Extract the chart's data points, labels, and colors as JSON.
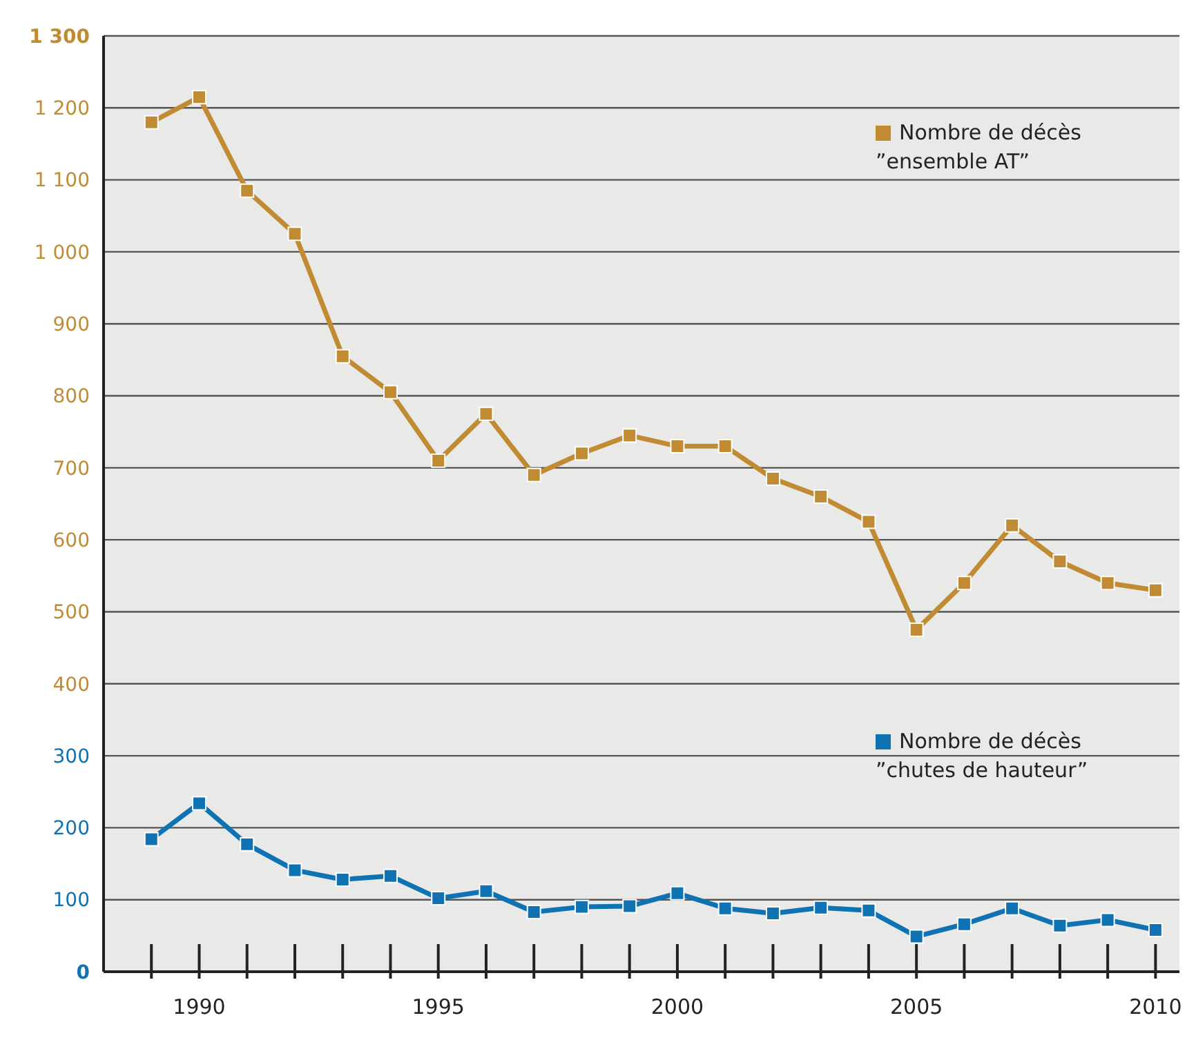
{
  "chart_data": {
    "type": "line",
    "x": [
      1989,
      1990,
      1991,
      1992,
      1993,
      1994,
      1995,
      1996,
      1997,
      1998,
      1999,
      2000,
      2001,
      2002,
      2003,
      2004,
      2005,
      2006,
      2007,
      2008,
      2009,
      2010
    ],
    "series": [
      {
        "name": "Nombre de décès\n”ensemble AT”",
        "color": "#c08b33",
        "values": [
          1180,
          1215,
          1085,
          1025,
          855,
          805,
          710,
          775,
          690,
          720,
          745,
          730,
          730,
          685,
          660,
          625,
          475,
          540,
          620,
          570,
          540,
          530
        ]
      },
      {
        "name": "Nombre de décès\n”chutes de hauteur”",
        "color": "#0f72b3",
        "values": [
          184,
          234,
          177,
          141,
          128,
          133,
          102,
          112,
          83,
          90,
          91,
          109,
          88,
          81,
          89,
          85,
          49,
          66,
          88,
          64,
          72,
          58
        ]
      }
    ],
    "xlim": [
      1988,
      2010.5
    ],
    "xticks": [
      {
        "value": 1989,
        "label": null
      },
      1990,
      {
        "value": 1991,
        "label": null
      },
      {
        "value": 1992,
        "label": null
      },
      {
        "value": 1993,
        "label": null
      },
      {
        "value": 1994,
        "label": null
      },
      1995,
      {
        "value": 1996,
        "label": null
      },
      {
        "value": 1997,
        "label": null
      },
      {
        "value": 1998,
        "label": null
      },
      {
        "value": 1999,
        "label": null
      },
      2000,
      {
        "value": 2001,
        "label": null
      },
      {
        "value": 2002,
        "label": null
      },
      {
        "value": 2003,
        "label": null
      },
      {
        "value": 2004,
        "label": null
      },
      2005,
      {
        "value": 2006,
        "label": null
      },
      {
        "value": 2007,
        "label": null
      },
      {
        "value": 2008,
        "label": null
      },
      {
        "value": 2009,
        "label": null
      },
      2010
    ],
    "ylim": [
      0,
      1300
    ],
    "yticks": [
      0,
      100,
      200,
      300,
      400,
      500,
      600,
      700,
      800,
      900,
      {
        "value": 1000,
        "label": "1 000"
      },
      {
        "value": 1100,
        "label": "1 100"
      },
      {
        "value": 1200,
        "label": "1 200"
      },
      {
        "value": 1300,
        "label": "1 300"
      }
    ],
    "grid": "y",
    "legend": "right",
    "marker": "square",
    "line_style": "solid"
  }
}
